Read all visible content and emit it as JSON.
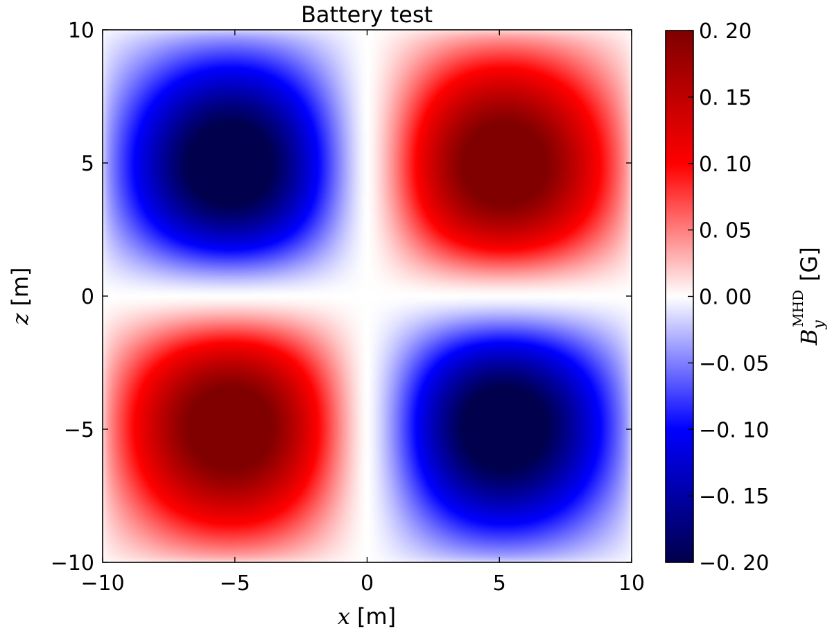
{
  "chart_data": {
    "type": "heatmap",
    "title": "Battery test",
    "xlabel": {
      "symbol": "x",
      "unit": "[m]"
    },
    "ylabel": {
      "symbol": "z",
      "unit": "[m]"
    },
    "colorbar_label": {
      "symbol": "B",
      "subscript": "y",
      "superscript": "MHD",
      "unit": "[G]"
    },
    "xlim": [
      -10,
      10
    ],
    "ylim": [
      -10,
      10
    ],
    "x_ticks": [
      -10,
      -5,
      0,
      5,
      10
    ],
    "x_tick_labels": [
      "−10",
      "−5",
      "0",
      "5",
      "10"
    ],
    "y_ticks": [
      -10,
      -5,
      0,
      5,
      10
    ],
    "y_tick_labels": [
      "−10",
      "−5",
      "0",
      "5",
      "10"
    ],
    "clim": [
      -0.2,
      0.2
    ],
    "colorbar_ticks": [
      -0.2,
      -0.15,
      -0.1,
      -0.05,
      0,
      0.05,
      0.1,
      0.15,
      0.2
    ],
    "colorbar_tick_labels": [
      "−0. 20",
      "−0. 15",
      "−0. 10",
      "−0. 05",
      "0. 00",
      "0. 05",
      "0. 10",
      "0. 15",
      "0. 20"
    ],
    "colormap": "seismic",
    "colormap_stops": [
      {
        "value": 0.0,
        "color": "#00004c"
      },
      {
        "value": 0.25,
        "color": "#0000ff"
      },
      {
        "value": 0.5,
        "color": "#ffffff"
      },
      {
        "value": 0.75,
        "color": "#ff0000"
      },
      {
        "value": 1.0,
        "color": "#800000"
      }
    ],
    "grid": false,
    "field_peaks": [
      {
        "x": -5,
        "z": 4.5,
        "value": -0.2
      },
      {
        "x": 5,
        "z": 4.5,
        "value": 0.2
      },
      {
        "x": -5,
        "z": -4.5,
        "value": 0.2
      },
      {
        "x": 5,
        "z": -4.5,
        "value": -0.2
      }
    ]
  }
}
